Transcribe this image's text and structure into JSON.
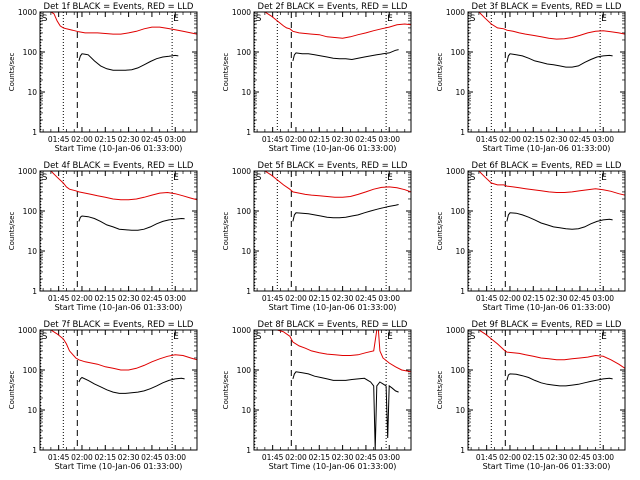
{
  "chart_data": {
    "type": "line",
    "x_tick_labels": [
      "01:45",
      "02:00",
      "02:15",
      "02:30",
      "02:45",
      "03:00"
    ],
    "x_tick_minutes": [
      105,
      120,
      135,
      150,
      165,
      180
    ],
    "xlim_minutes": [
      93,
      194
    ],
    "xlabel": "Start Time (10-Jan-06 01:33:00)",
    "ylabel": "Counts/sec",
    "ylim": [
      1,
      1000
    ],
    "y_scale": "log",
    "y_tick_labels": [
      "1",
      "10",
      "100",
      "1000"
    ],
    "y_tick_values": [
      1,
      10,
      100,
      1000
    ],
    "marker_labels": [
      "S",
      "E"
    ],
    "colors": {
      "events": "#000000",
      "lld": "#e00000",
      "frame": "#000000"
    },
    "panels": [
      {
        "title": "Det 1f BLACK = Events, RED = LLD",
        "dotted_lines": [
          93.5,
          108,
          178
        ],
        "dashed_line": 117,
        "marker_S": 93.5,
        "marker_E": 178,
        "lld": {
          "x": [
            100,
            102,
            104,
            106,
            108,
            110,
            114,
            118,
            122,
            126,
            130,
            135,
            140,
            145,
            150,
            155,
            160,
            165,
            170,
            175,
            180,
            185,
            190,
            194
          ],
          "y": [
            1000,
            900,
            600,
            450,
            400,
            380,
            350,
            320,
            300,
            300,
            300,
            290,
            280,
            280,
            300,
            330,
            380,
            420,
            420,
            390,
            360,
            330,
            300,
            280
          ]
        },
        "events": {
          "x": [
            118,
            119,
            120,
            122,
            124,
            128,
            132,
            136,
            140,
            144,
            148,
            152,
            156,
            160,
            164,
            168,
            172,
            176,
            180,
            182
          ],
          "y": [
            60,
            80,
            90,
            88,
            85,
            60,
            45,
            38,
            35,
            35,
            35,
            36,
            40,
            48,
            58,
            68,
            75,
            78,
            82,
            80
          ]
        }
      },
      {
        "title": "Det 2f BLACK = Events, RED = LLD",
        "dotted_lines": [
          93.5,
          108,
          178
        ],
        "dashed_line": 117,
        "marker_S": 93.5,
        "marker_E": 178,
        "lld": {
          "x": [
            100,
            104,
            108,
            112,
            114,
            116,
            118,
            122,
            126,
            130,
            135,
            140,
            145,
            150,
            155,
            160,
            165,
            170,
            175,
            180,
            185,
            190,
            194
          ],
          "y": [
            1000,
            800,
            600,
            450,
            400,
            380,
            330,
            300,
            290,
            280,
            270,
            240,
            230,
            220,
            240,
            270,
            300,
            340,
            380,
            420,
            480,
            500,
            480
          ]
        },
        "events": {
          "x": [
            118,
            119,
            120,
            124,
            128,
            132,
            136,
            140,
            144,
            148,
            152,
            156,
            160,
            164,
            168,
            172,
            176,
            180,
            184,
            186
          ],
          "y": [
            60,
            85,
            95,
            90,
            90,
            85,
            80,
            75,
            70,
            68,
            68,
            65,
            70,
            75,
            80,
            85,
            90,
            95,
            110,
            115
          ]
        }
      },
      {
        "title": "Det 3f BLACK = Events, RED = LLD",
        "dotted_lines": [
          93.5,
          108,
          178
        ],
        "dashed_line": 117,
        "marker_S": 93.5,
        "marker_E": 178,
        "lld": {
          "x": [
            100,
            104,
            108,
            112,
            116,
            118,
            122,
            126,
            130,
            135,
            140,
            145,
            150,
            155,
            160,
            165,
            170,
            175,
            180,
            185,
            190,
            194
          ],
          "y": [
            1000,
            700,
            500,
            400,
            380,
            350,
            330,
            300,
            280,
            260,
            240,
            220,
            210,
            215,
            230,
            260,
            300,
            330,
            340,
            320,
            300,
            280
          ]
        },
        "events": {
          "x": [
            118,
            119,
            120,
            124,
            128,
            132,
            136,
            140,
            144,
            148,
            152,
            156,
            160,
            164,
            168,
            172,
            176,
            180,
            184,
            186
          ],
          "y": [
            55,
            80,
            90,
            85,
            80,
            70,
            60,
            55,
            50,
            48,
            45,
            42,
            42,
            45,
            55,
            65,
            75,
            80,
            82,
            80
          ]
        }
      },
      {
        "title": "Det 4f BLACK = Events, RED = LLD",
        "dotted_lines": [
          93.5,
          108,
          178
        ],
        "dashed_line": 117,
        "marker_S": 93.5,
        "marker_E": 178,
        "lld": {
          "x": [
            100,
            104,
            108,
            110,
            112,
            116,
            118,
            122,
            126,
            130,
            135,
            140,
            145,
            150,
            155,
            160,
            165,
            170,
            175,
            180,
            185,
            190,
            194
          ],
          "y": [
            1000,
            700,
            500,
            400,
            350,
            320,
            300,
            280,
            260,
            240,
            220,
            200,
            190,
            190,
            200,
            220,
            250,
            280,
            290,
            270,
            240,
            210,
            190
          ]
        },
        "events": {
          "x": [
            118,
            119,
            120,
            124,
            128,
            132,
            136,
            140,
            144,
            148,
            152,
            156,
            160,
            164,
            168,
            172,
            176,
            180,
            184,
            186
          ],
          "y": [
            55,
            70,
            75,
            72,
            65,
            55,
            45,
            40,
            35,
            34,
            33,
            33,
            35,
            40,
            48,
            55,
            60,
            62,
            65,
            64
          ]
        }
      },
      {
        "title": "Det 5f BLACK = Events, RED = LLD",
        "dotted_lines": [
          93.5,
          108,
          178
        ],
        "dashed_line": 117,
        "marker_S": 93.5,
        "marker_E": 178,
        "lld": {
          "x": [
            100,
            104,
            108,
            112,
            116,
            118,
            122,
            126,
            130,
            135,
            140,
            145,
            150,
            155,
            160,
            165,
            170,
            175,
            180,
            185,
            190,
            194
          ],
          "y": [
            1000,
            800,
            600,
            450,
            350,
            300,
            280,
            260,
            250,
            240,
            230,
            220,
            220,
            230,
            260,
            300,
            350,
            390,
            400,
            380,
            340,
            300
          ]
        },
        "events": {
          "x": [
            118,
            119,
            120,
            124,
            128,
            132,
            136,
            140,
            144,
            148,
            152,
            156,
            160,
            164,
            168,
            172,
            176,
            180,
            184,
            186
          ],
          "y": [
            55,
            80,
            90,
            88,
            85,
            80,
            75,
            70,
            68,
            68,
            70,
            75,
            80,
            90,
            100,
            110,
            120,
            130,
            140,
            145
          ]
        }
      },
      {
        "title": "Det 6f BLACK = Events, RED = LLD",
        "dotted_lines": [
          93.5,
          108,
          178
        ],
        "dashed_line": 117,
        "marker_S": 93.5,
        "marker_E": 178,
        "lld": {
          "x": [
            100,
            104,
            108,
            112,
            116,
            118,
            122,
            126,
            130,
            135,
            140,
            145,
            150,
            155,
            160,
            165,
            170,
            175,
            180,
            185,
            190,
            194
          ],
          "y": [
            1000,
            700,
            500,
            450,
            450,
            420,
            400,
            380,
            360,
            340,
            320,
            300,
            290,
            290,
            300,
            320,
            340,
            360,
            340,
            310,
            270,
            250
          ]
        },
        "events": {
          "x": [
            118,
            119,
            120,
            124,
            128,
            132,
            136,
            140,
            144,
            148,
            152,
            156,
            160,
            164,
            168,
            172,
            176,
            180,
            184,
            186
          ],
          "y": [
            55,
            80,
            90,
            88,
            80,
            70,
            60,
            50,
            45,
            40,
            38,
            36,
            35,
            36,
            40,
            48,
            55,
            60,
            62,
            60
          ]
        }
      },
      {
        "title": "Det 7f BLACK = Events, RED = LLD",
        "dotted_lines": [
          93.5,
          108,
          178
        ],
        "dashed_line": 117,
        "marker_S": 93.5,
        "marker_E": 178,
        "lld": {
          "x": [
            100,
            104,
            108,
            110,
            112,
            116,
            118,
            122,
            126,
            130,
            135,
            140,
            145,
            150,
            155,
            160,
            165,
            170,
            175,
            180,
            185,
            190,
            194
          ],
          "y": [
            1000,
            800,
            600,
            450,
            300,
            200,
            180,
            160,
            150,
            140,
            120,
            110,
            100,
            100,
            110,
            130,
            160,
            190,
            220,
            240,
            230,
            200,
            180
          ]
        },
        "events": {
          "x": [
            118,
            119,
            120,
            124,
            128,
            132,
            136,
            140,
            144,
            148,
            152,
            156,
            160,
            164,
            168,
            172,
            176,
            180,
            184,
            186
          ],
          "y": [
            50,
            60,
            65,
            55,
            45,
            38,
            32,
            28,
            26,
            26,
            27,
            28,
            30,
            34,
            40,
            48,
            55,
            60,
            62,
            60
          ]
        }
      },
      {
        "title": "Det 8f BLACK = Events, RED = LLD",
        "dotted_lines": [
          93.5,
          178
        ],
        "dashed_line": 117,
        "marker_S": 93.5,
        "marker_E": 178,
        "lld": {
          "x": [
            100,
            104,
            108,
            112,
            116,
            118,
            122,
            126,
            130,
            135,
            140,
            145,
            150,
            155,
            160,
            165,
            170,
            172,
            173,
            174,
            176,
            180,
            184,
            188,
            194
          ],
          "y": [
            1000,
            1000,
            1000,
            900,
            700,
            500,
            400,
            350,
            300,
            270,
            250,
            240,
            230,
            230,
            240,
            270,
            300,
            1000,
            1000,
            300,
            200,
            150,
            120,
            100,
            90
          ]
        },
        "events": {
          "x": [
            118,
            119,
            120,
            124,
            128,
            132,
            136,
            140,
            144,
            148,
            152,
            156,
            160,
            164,
            168,
            170,
            171,
            172,
            174,
            176,
            178,
            179,
            180,
            182,
            184,
            186
          ],
          "y": [
            60,
            80,
            90,
            85,
            80,
            70,
            65,
            60,
            55,
            55,
            55,
            58,
            60,
            62,
            50,
            40,
            1,
            40,
            50,
            45,
            40,
            2,
            40,
            35,
            30,
            28
          ]
        }
      },
      {
        "title": "Det 9f BLACK = Events, RED = LLD",
        "dotted_lines": [
          93.5,
          108,
          178
        ],
        "dashed_line": 117,
        "marker_S": 93.5,
        "marker_E": 178,
        "lld": {
          "x": [
            100,
            104,
            108,
            112,
            116,
            118,
            122,
            126,
            130,
            135,
            140,
            145,
            150,
            155,
            160,
            165,
            170,
            175,
            180,
            185,
            190,
            194
          ],
          "y": [
            1000,
            800,
            600,
            450,
            320,
            280,
            270,
            260,
            240,
            220,
            200,
            190,
            180,
            180,
            190,
            200,
            210,
            230,
            220,
            180,
            140,
            110
          ]
        },
        "events": {
          "x": [
            118,
            119,
            120,
            124,
            128,
            132,
            136,
            140,
            144,
            148,
            152,
            156,
            160,
            164,
            168,
            172,
            176,
            180,
            184,
            186
          ],
          "y": [
            55,
            75,
            80,
            78,
            72,
            65,
            55,
            48,
            44,
            42,
            40,
            40,
            42,
            44,
            48,
            52,
            56,
            60,
            62,
            60
          ]
        }
      }
    ]
  }
}
